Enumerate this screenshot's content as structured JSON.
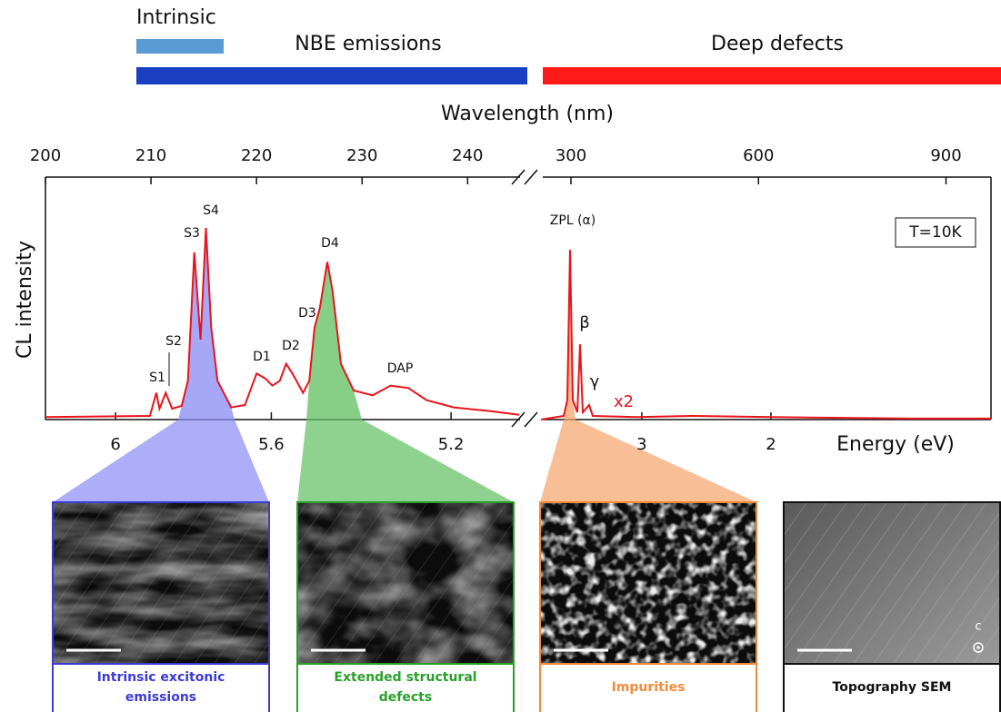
{
  "figure": {
    "bars": [
      "Intrinsic",
      "NBE emissions",
      "Deep defects"
    ],
    "bar_colors": [
      "#5b9bd5",
      "#1a3fc0",
      "#ff1a1a"
    ],
    "panels": [
      {
        "caption": [
          "Intrinsic excitonic",
          "emissions"
        ],
        "color": "#3b3bd6"
      },
      {
        "caption": [
          "Extended structural",
          "defects"
        ],
        "color": "#2aa02a"
      },
      {
        "caption": [
          "Impurities"
        ],
        "color": "#f28a3c"
      },
      {
        "caption": [
          "Topography SEM"
        ],
        "color": "#111111"
      }
    ],
    "axis_vector": "c"
  },
  "chart_data": [
    {
      "type": "line",
      "xlabel": "Wavelength (nm)",
      "ylabel": "CL intensity",
      "x2label": "Energy (eV)",
      "color": "#e8141b",
      "x": [
        200,
        209.9,
        210.5,
        210.8,
        211.4,
        212.0,
        212.9,
        213.5,
        214.1,
        214.7,
        215.2,
        215.7,
        216.3,
        217.6,
        218.9,
        220.0,
        220.8,
        221.5,
        222.2,
        222.8,
        223.4,
        224.4,
        225.0,
        225.5,
        226.0,
        226.7,
        227.2,
        228.0,
        229.2,
        231.0,
        232.7,
        234.4,
        236.1,
        238.7,
        242.2,
        244.9
      ],
      "values": [
        0.01,
        0.015,
        0.11,
        0.045,
        0.11,
        0.045,
        0.056,
        0.16,
        0.69,
        0.33,
        0.79,
        0.38,
        0.16,
        0.05,
        0.06,
        0.19,
        0.17,
        0.14,
        0.16,
        0.23,
        0.19,
        0.11,
        0.16,
        0.38,
        0.46,
        0.65,
        0.53,
        0.23,
        0.12,
        0.1,
        0.14,
        0.13,
        0.08,
        0.05,
        0.035,
        0.02
      ],
      "xlim": [
        200,
        246
      ],
      "ylim": [
        0,
        1
      ],
      "xticks": [
        200,
        210,
        220,
        230,
        240
      ],
      "x2ticks": [
        6,
        5.6,
        5.2
      ],
      "annotations": [
        "S1",
        "S2",
        "S3",
        "S4",
        "D1",
        "D2",
        "D3",
        "D4",
        "DAP"
      ]
    },
    {
      "type": "line",
      "color": "#e8141b",
      "x": [
        252,
        288.4,
        294.2,
        298.5,
        302.9,
        310.2,
        314.6,
        318.9,
        329.1,
        334.9,
        404.8,
        492.1,
        623.1,
        841.5,
        972.5
      ],
      "values": [
        0.0,
        0.015,
        0.08,
        0.7,
        0.08,
        0.03,
        0.31,
        0.03,
        0.06,
        0.015,
        0.01,
        0.015,
        0.01,
        0.004,
        0.004
      ],
      "xlim": [
        252,
        972
      ],
      "ylim": [
        0,
        1
      ],
      "xticks": [
        300,
        600,
        900
      ],
      "x2ticks": [
        3,
        2
      ],
      "annotations": [
        "ZPL (α)",
        "β",
        "γ",
        "x2",
        "T=10K"
      ]
    }
  ]
}
